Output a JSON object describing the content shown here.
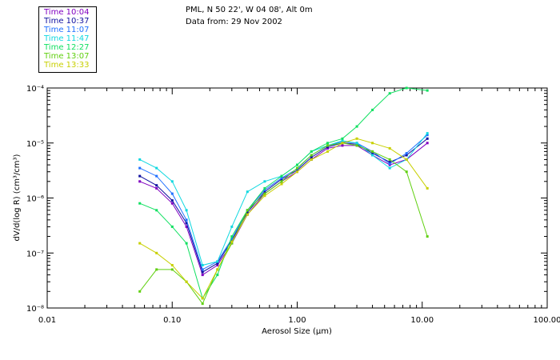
{
  "header": {
    "location": "PML, N 50 22', W 04 08', Alt 0m",
    "date_line": "Data from: 29 Nov 2002"
  },
  "legend": [
    {
      "label": "Time 10:04",
      "color": "#8000c0"
    },
    {
      "label": "Time 10:37",
      "color": "#1010a0"
    },
    {
      "label": "Time 11:07",
      "color": "#2070ff"
    },
    {
      "label": "Time 11:47",
      "color": "#10d8e0"
    },
    {
      "label": "Time 12:27",
      "color": "#10e060"
    },
    {
      "label": "Time 13:07",
      "color": "#60d010"
    },
    {
      "label": "Time 13:33",
      "color": "#c8d000"
    }
  ],
  "chart_data": {
    "type": "line",
    "xlabel": "Aerosol Size (µm)",
    "ylabel": "dV/d(log R) (cm³/cm³)",
    "x_scale": "log",
    "y_scale": "log",
    "xlim": [
      0.01,
      100
    ],
    "ylim": [
      1e-08,
      0.0001
    ],
    "x_ticks": [
      {
        "value": 0.01,
        "label": "0.01"
      },
      {
        "value": 0.1,
        "label": "0.10"
      },
      {
        "value": 1,
        "label": "1.00"
      },
      {
        "value": 10,
        "label": "10.00"
      },
      {
        "value": 100,
        "label": "100.00"
      }
    ],
    "y_ticks": [
      {
        "value": 1e-08,
        "label": "10⁻⁸"
      },
      {
        "value": 1e-07,
        "label": "10⁻⁷"
      },
      {
        "value": 1e-06,
        "label": "10⁻⁶"
      },
      {
        "value": 1e-05,
        "label": "10⁻⁵"
      },
      {
        "value": 0.0001,
        "label": "10⁻⁴"
      }
    ],
    "x": [
      0.055,
      0.075,
      0.1,
      0.13,
      0.175,
      0.23,
      0.3,
      0.4,
      0.55,
      0.75,
      1.0,
      1.3,
      1.75,
      2.3,
      3.0,
      4.0,
      5.5,
      7.5,
      11.0
    ],
    "series": [
      {
        "name": "Time 10:04",
        "color": "#8000c0",
        "values": [
          2e-06,
          1.5e-06,
          8e-07,
          3e-07,
          4e-08,
          6e-08,
          1.5e-07,
          5e-07,
          1.2e-06,
          2e-06,
          3e-06,
          5e-06,
          8e-06,
          9e-06,
          9e-06,
          6e-06,
          4e-06,
          5e-06,
          1e-05
        ]
      },
      {
        "name": "Time 10:37",
        "color": "#1010a0",
        "values": [
          2.5e-06,
          1.7e-06,
          9e-07,
          3.5e-07,
          4.5e-08,
          6.5e-08,
          1.7e-07,
          5.5e-07,
          1.3e-06,
          2.2e-06,
          3.2e-06,
          5.5e-06,
          8.5e-06,
          1e-05,
          9.5e-06,
          6.5e-06,
          4.5e-06,
          6e-06,
          1.2e-05
        ]
      },
      {
        "name": "Time 11:07",
        "color": "#2070ff",
        "values": [
          3.5e-06,
          2.5e-06,
          1.2e-06,
          4e-07,
          5e-08,
          7e-08,
          1.8e-07,
          6e-07,
          1.4e-06,
          2.3e-06,
          3.4e-06,
          6e-06,
          9e-06,
          1.05e-05,
          1e-05,
          7e-06,
          4.2e-06,
          6.5e-06,
          1.4e-05
        ]
      },
      {
        "name": "Time 11:47",
        "color": "#10d8e0",
        "values": [
          5e-06,
          3.5e-06,
          2e-06,
          6e-07,
          6e-08,
          7e-08,
          3e-07,
          1.3e-06,
          2e-06,
          2.5e-06,
          4e-06,
          7e-06,
          9e-06,
          1.1e-05,
          1e-05,
          6e-06,
          3.5e-06,
          5e-06,
          1.5e-05
        ]
      },
      {
        "name": "Time 12:27",
        "color": "#10e060",
        "values": [
          8e-07,
          6e-07,
          3e-07,
          1.5e-07,
          1.5e-08,
          4e-08,
          2e-07,
          6e-07,
          1.5e-06,
          2.5e-06,
          4e-06,
          7e-06,
          1e-05,
          1.2e-05,
          2e-05,
          4e-05,
          8e-05,
          0.0001,
          9e-05
        ]
      },
      {
        "name": "Time 13:07",
        "color": "#60d010",
        "values": [
          2e-08,
          5e-08,
          5e-08,
          3e-08,
          1.2e-08,
          5e-08,
          1.5e-07,
          6e-07,
          1.2e-06,
          2e-06,
          3.5e-06,
          6e-06,
          9e-06,
          1e-05,
          9e-06,
          7e-06,
          5e-06,
          3e-06,
          2e-07
        ]
      },
      {
        "name": "Time 13:33",
        "color": "#c8d000",
        "values": [
          1.5e-07,
          1e-07,
          6e-08,
          3e-08,
          1.5e-08,
          5e-08,
          1.6e-07,
          5e-07,
          1.1e-06,
          1.8e-06,
          3e-06,
          5e-06,
          7e-06,
          1e-05,
          1.2e-05,
          1e-05,
          8e-06,
          5e-06,
          1.5e-06
        ]
      }
    ]
  }
}
